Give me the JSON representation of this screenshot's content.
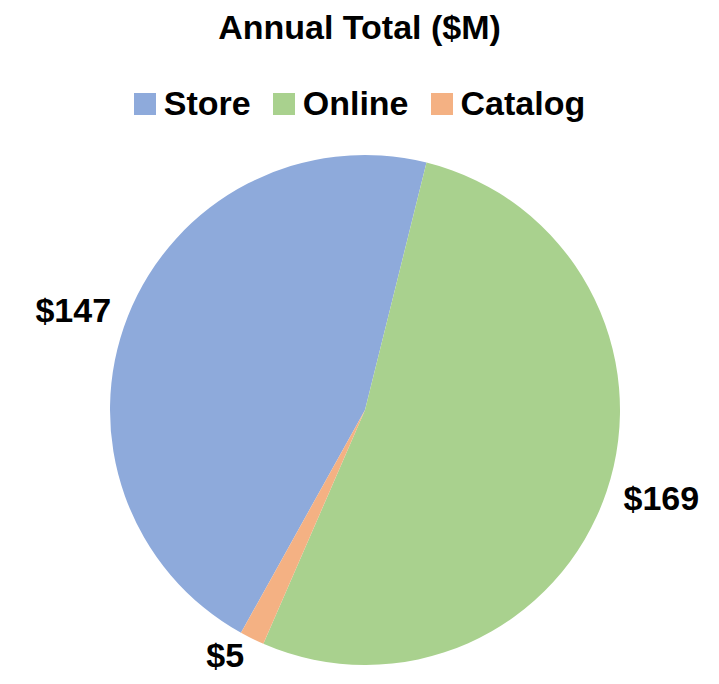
{
  "chart_data": {
    "type": "pie",
    "title": "Annual Total ($M)",
    "categories": [
      "Store",
      "Online",
      "Catalog"
    ],
    "values": [
      147,
      169,
      5
    ],
    "value_labels": [
      "$147",
      "$169",
      "$5"
    ],
    "colors": [
      "#8eaadb",
      "#a9d18e",
      "#f4b183"
    ],
    "legend": "top",
    "data_labels": true
  }
}
